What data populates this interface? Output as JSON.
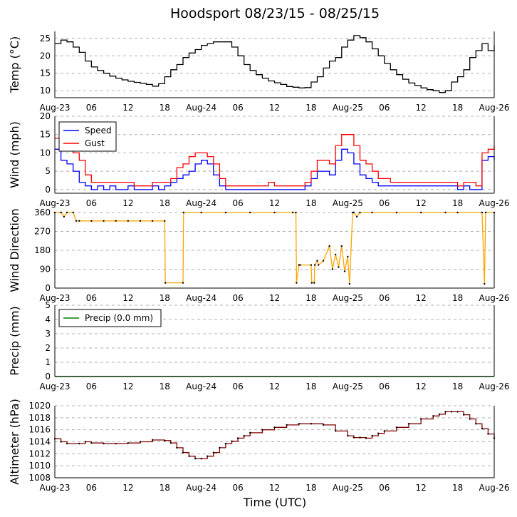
{
  "title": "Hoodsport 08/23/15 - 08/25/15",
  "xlabel": "Time (UTC)",
  "colors": {
    "temp": "#000000",
    "speed": "#0000ff",
    "gust": "#ff0000",
    "direction_line": "#ffa500",
    "direction_points": "#000000",
    "precip": "#008000",
    "altimeter_line": "#800000",
    "altimeter_points": "#000000",
    "grid": "#b0b0b0"
  },
  "chart_data": [
    {
      "id": "temp",
      "type": "line",
      "ylabel": "Temp (°C)",
      "ylim": [
        8,
        27
      ],
      "yticks": [
        "10",
        "15",
        "20",
        "25"
      ],
      "xlim": [
        0,
        72
      ],
      "xticks": [
        "Aug-23",
        "06",
        "12",
        "18",
        "Aug-24",
        "06",
        "12",
        "18",
        "Aug-25",
        "06",
        "12",
        "18",
        "Aug-26"
      ],
      "series": [
        {
          "name": "Temp",
          "x": [
            0,
            1,
            2,
            3,
            4,
            5,
            6,
            7,
            8,
            9,
            10,
            11,
            12,
            13,
            14,
            15,
            16,
            17,
            18,
            19,
            20,
            21,
            22,
            23,
            24,
            25,
            26,
            27,
            28,
            29,
            30,
            31,
            32,
            33,
            34,
            35,
            36,
            37,
            38,
            39,
            40,
            41,
            42,
            43,
            44,
            45,
            46,
            47,
            48,
            49,
            50,
            51,
            52,
            53,
            54,
            55,
            56,
            57,
            58,
            59,
            60,
            61,
            62,
            63,
            64,
            65,
            66,
            67,
            68,
            69,
            70,
            71,
            72
          ],
          "values": [
            23.5,
            24.5,
            24,
            22.5,
            21,
            18.5,
            16.8,
            15.8,
            15,
            14.2,
            13.6,
            13.1,
            12.7,
            12.4,
            12.1,
            11.8,
            11.3,
            12,
            14,
            16,
            17.5,
            19.5,
            20.8,
            21.8,
            23,
            23.5,
            24,
            24,
            24,
            22.5,
            20,
            17.5,
            15.8,
            14.6,
            13.6,
            12.8,
            12.3,
            11.8,
            11.2,
            11,
            10.8,
            10.9,
            12.5,
            14,
            16.5,
            18.5,
            19.5,
            22.5,
            24.5,
            25.8,
            25.2,
            24,
            22,
            20,
            17.8,
            16,
            14.6,
            13.3,
            12.2,
            11.5,
            10.8,
            10.3,
            10,
            9.5,
            10,
            12.5,
            14,
            16,
            19.5,
            21.5,
            23.5,
            21.5,
            23
          ]
        }
      ]
    },
    {
      "id": "wind",
      "type": "line",
      "ylabel": "Wind (mph)",
      "ylim": [
        -1,
        20
      ],
      "yticks": [
        "0",
        "5",
        "10",
        "15",
        "20"
      ],
      "xlim": [
        0,
        72
      ],
      "xticks": [
        "Aug-23",
        "06",
        "12",
        "18",
        "Aug-24",
        "06",
        "12",
        "18",
        "Aug-25",
        "06",
        "12",
        "18",
        "Aug-26"
      ],
      "legend": [
        "Speed",
        "Gust"
      ],
      "series": [
        {
          "name": "Speed",
          "x": [
            0,
            1,
            2,
            3,
            4,
            5,
            6,
            7,
            8,
            9,
            10,
            11,
            12,
            13,
            14,
            15,
            16,
            17,
            18,
            19,
            20,
            21,
            22,
            23,
            24,
            25,
            26,
            27,
            28,
            29,
            30,
            31,
            32,
            33,
            34,
            35,
            36,
            37,
            38,
            39,
            40,
            41,
            42,
            43,
            44,
            45,
            46,
            47,
            48,
            49,
            50,
            51,
            52,
            53,
            54,
            55,
            56,
            57,
            58,
            59,
            60,
            61,
            62,
            63,
            64,
            65,
            66,
            67,
            68,
            69,
            70,
            71,
            72
          ],
          "values": [
            11,
            8,
            7,
            5,
            2,
            1,
            0,
            1,
            0,
            1,
            0,
            0,
            1,
            0,
            0,
            0,
            1,
            0,
            1,
            2,
            3,
            4,
            5,
            7,
            8,
            7,
            4,
            1,
            0,
            0,
            0,
            0,
            0,
            0,
            0,
            0,
            0,
            0,
            0,
            0,
            0,
            1,
            3,
            5,
            5,
            4,
            8,
            11,
            10,
            7,
            4,
            3,
            2,
            1,
            1,
            1,
            1,
            1,
            1,
            1,
            1,
            1,
            1,
            1,
            1,
            1,
            0,
            1,
            0,
            0,
            8,
            9,
            8
          ]
        },
        {
          "name": "Gust",
          "x": [
            0,
            1,
            2,
            3,
            4,
            5,
            6,
            7,
            8,
            9,
            10,
            11,
            12,
            13,
            14,
            15,
            16,
            17,
            18,
            19,
            20,
            21,
            22,
            23,
            24,
            25,
            26,
            27,
            28,
            29,
            30,
            31,
            32,
            33,
            34,
            35,
            36,
            37,
            38,
            39,
            40,
            41,
            42,
            43,
            44,
            45,
            46,
            47,
            48,
            49,
            50,
            51,
            52,
            53,
            54,
            55,
            56,
            57,
            58,
            59,
            60,
            61,
            62,
            63,
            64,
            65,
            66,
            67,
            68,
            69,
            70,
            71,
            72
          ],
          "values": [
            14,
            12,
            11,
            10,
            8,
            4,
            2,
            2,
            2,
            2,
            2,
            2,
            2,
            1,
            1,
            1,
            2,
            2,
            2,
            3,
            6,
            7,
            9,
            10,
            10,
            9,
            7,
            3,
            1,
            1,
            1,
            1,
            1,
            1,
            1,
            2,
            1,
            1,
            1,
            1,
            1,
            2,
            5,
            8,
            8,
            7,
            12,
            15,
            15,
            12,
            8,
            7,
            5,
            3,
            3,
            2,
            2,
            2,
            2,
            2,
            2,
            2,
            2,
            2,
            2,
            2,
            1,
            2,
            2,
            1,
            10,
            11,
            12
          ]
        }
      ]
    },
    {
      "id": "direction",
      "type": "line",
      "ylabel": "Wind Direction",
      "ylim": [
        0,
        360
      ],
      "yticks": [
        "0",
        "90",
        "180",
        "270",
        "360"
      ],
      "xlim": [
        0,
        72
      ],
      "xticks": [
        "Aug-23",
        "06",
        "12",
        "18",
        "Aug-24",
        "06",
        "12",
        "18",
        "Aug-25",
        "06",
        "12",
        "18",
        "Aug-26"
      ],
      "series": [
        {
          "name": "Direction",
          "x": [
            0,
            1,
            1.5,
            2,
            3,
            3.5,
            4,
            6,
            8,
            10,
            12,
            14,
            16,
            18,
            18.1,
            21,
            21.1,
            24,
            28,
            32,
            36,
            39,
            39.5,
            39.6,
            40,
            40.2,
            42,
            42.1,
            42.5,
            42.6,
            43,
            43.2,
            44,
            45,
            45.5,
            46,
            46.5,
            47,
            47.5,
            48,
            48.3,
            48.8,
            49,
            49.5,
            50,
            52,
            56,
            60,
            64,
            66,
            70,
            70.4,
            70.6,
            72
          ],
          "values": [
            360,
            360,
            340,
            360,
            360,
            320,
            320,
            320,
            320,
            320,
            320,
            320,
            320,
            320,
            25,
            25,
            360,
            360,
            360,
            360,
            360,
            360,
            360,
            25,
            110,
            110,
            110,
            25,
            25,
            110,
            130,
            110,
            130,
            200,
            90,
            160,
            100,
            200,
            80,
            150,
            20,
            360,
            360,
            340,
            360,
            360,
            360,
            360,
            360,
            360,
            360,
            20,
            360,
            360
          ]
        }
      ]
    },
    {
      "id": "precip",
      "type": "line",
      "ylabel": "Precip (mm)",
      "ylim": [
        0,
        5
      ],
      "yticks": [
        "0",
        "1",
        "2",
        "3",
        "4",
        "5"
      ],
      "xlim": [
        0,
        72
      ],
      "xticks": [
        "Aug-23",
        "06",
        "12",
        "18",
        "Aug-24",
        "06",
        "12",
        "18",
        "Aug-25",
        "06",
        "12",
        "18",
        "Aug-26"
      ],
      "legend": [
        "Precip (0.0 mm)"
      ],
      "series": [
        {
          "name": "Precip (0.0 mm)",
          "x": [
            0,
            72
          ],
          "values": [
            0,
            0
          ]
        }
      ]
    },
    {
      "id": "altimeter",
      "type": "line",
      "ylabel": "Altimeter (hPa)",
      "ylim": [
        1008,
        1020
      ],
      "yticks": [
        "1008",
        "1010",
        "1012",
        "1014",
        "1016",
        "1018",
        "1020"
      ],
      "xlim": [
        0,
        72
      ],
      "xticks": [
        "Aug-23",
        "06",
        "12",
        "18",
        "Aug-24",
        "06",
        "12",
        "18",
        "Aug-25",
        "06",
        "12",
        "18",
        "Aug-26"
      ],
      "series": [
        {
          "name": "Altimeter",
          "x": [
            0,
            1,
            2,
            4,
            5,
            6,
            8,
            10,
            12,
            14,
            16,
            18,
            19,
            20,
            21,
            22,
            23,
            24,
            25,
            26,
            27,
            28,
            29,
            30,
            31,
            32,
            34,
            36,
            38,
            40,
            42,
            44,
            46,
            48,
            49,
            50,
            51,
            52,
            53,
            54,
            56,
            58,
            60,
            62,
            63,
            64,
            65,
            66,
            67,
            68,
            69,
            70,
            71,
            72
          ],
          "values": [
            1014.5,
            1014,
            1013.7,
            1013.7,
            1014,
            1013.8,
            1013.7,
            1013.7,
            1013.8,
            1014,
            1014.3,
            1014.2,
            1013.8,
            1013,
            1012.2,
            1011.6,
            1011.2,
            1011.2,
            1011.6,
            1012.2,
            1013,
            1013.7,
            1014.1,
            1014.6,
            1015,
            1015.5,
            1016,
            1016.4,
            1016.8,
            1017,
            1017,
            1016.8,
            1015.8,
            1015,
            1014.7,
            1014.7,
            1014.6,
            1015,
            1015.4,
            1015.8,
            1016.4,
            1017,
            1017.8,
            1018.3,
            1018.6,
            1019,
            1019,
            1019,
            1018.5,
            1017.8,
            1017,
            1016.2,
            1015.3,
            1014.6
          ]
        }
      ]
    }
  ]
}
